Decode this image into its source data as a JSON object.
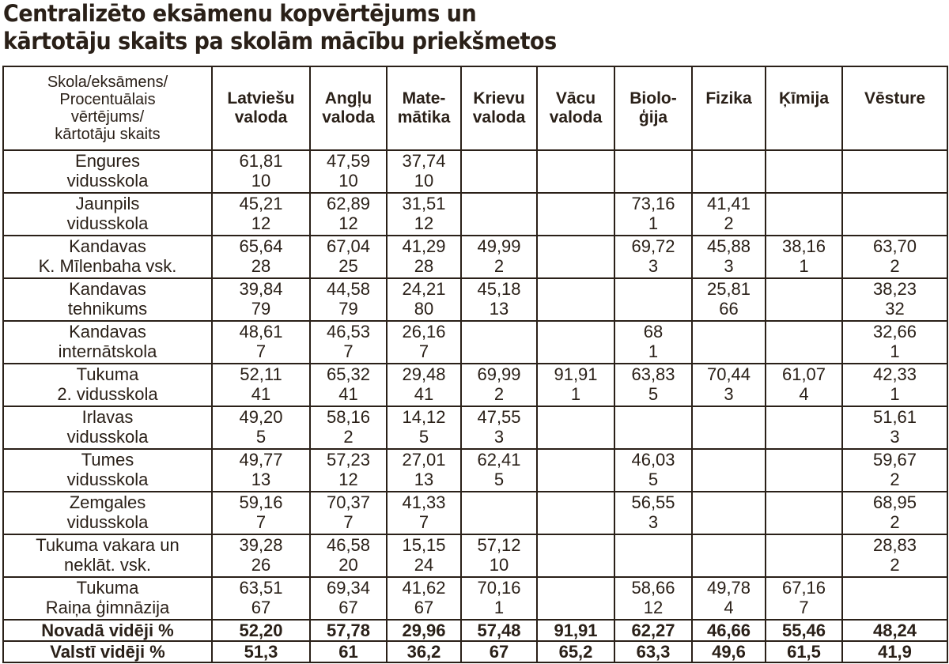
{
  "title": [
    "Centralizēto eksāmenu kopvērtējums un",
    "kārtotāju skaits pa skolām mācību priekšmetos"
  ],
  "corner_header": [
    "Skola/eksāmens/",
    "Procentuālais",
    "vērtējums/",
    "kārtotāju skaits"
  ],
  "subjects": [
    [
      "Latviešu",
      "valoda"
    ],
    [
      "Angļu",
      "valoda"
    ],
    [
      "Mate-",
      "mātika"
    ],
    [
      "Krievu",
      "valoda"
    ],
    [
      "Vācu",
      "valoda"
    ],
    [
      "Biolo-",
      "ģija"
    ],
    [
      "Fizika",
      ""
    ],
    [
      "Ķīmija",
      ""
    ],
    [
      "Vēsture",
      ""
    ]
  ],
  "rows": [
    {
      "school": [
        "Engures",
        "vidusskola"
      ],
      "cells": [
        [
          "61,81",
          "10"
        ],
        [
          "47,59",
          "10"
        ],
        [
          "37,74",
          "10"
        ],
        [
          "",
          ""
        ],
        [
          "",
          ""
        ],
        [
          "",
          ""
        ],
        [
          "",
          ""
        ],
        [
          "",
          ""
        ],
        [
          "",
          ""
        ]
      ]
    },
    {
      "school": [
        "Jaunpils",
        "vidusskola"
      ],
      "cells": [
        [
          "45,21",
          "12"
        ],
        [
          "62,89",
          "12"
        ],
        [
          "31,51",
          "12"
        ],
        [
          "",
          ""
        ],
        [
          "",
          ""
        ],
        [
          "73,16",
          "1"
        ],
        [
          "41,41",
          "2"
        ],
        [
          "",
          ""
        ],
        [
          "",
          ""
        ]
      ]
    },
    {
      "school": [
        "Kandavas",
        "K. Mīlenbaha vsk."
      ],
      "cells": [
        [
          "65,64",
          "28"
        ],
        [
          "67,04",
          "25"
        ],
        [
          "41,29",
          "28"
        ],
        [
          "49,99",
          "2"
        ],
        [
          "",
          ""
        ],
        [
          "69,72",
          "3"
        ],
        [
          "45,88",
          "3"
        ],
        [
          "38,16",
          "1"
        ],
        [
          "63,70",
          "2"
        ]
      ]
    },
    {
      "school": [
        "Kandavas",
        "tehnikums"
      ],
      "cells": [
        [
          "39,84",
          "79"
        ],
        [
          "44,58",
          "79"
        ],
        [
          "24,21",
          "80"
        ],
        [
          "45,18",
          "13"
        ],
        [
          "",
          ""
        ],
        [
          "",
          ""
        ],
        [
          "25,81",
          "66"
        ],
        [
          "",
          ""
        ],
        [
          "38,23",
          "32"
        ]
      ]
    },
    {
      "school": [
        "Kandavas",
        "internātskola"
      ],
      "cells": [
        [
          "48,61",
          "7"
        ],
        [
          "46,53",
          "7"
        ],
        [
          "26,16",
          "7"
        ],
        [
          "",
          ""
        ],
        [
          "",
          ""
        ],
        [
          "68",
          "1"
        ],
        [
          "",
          ""
        ],
        [
          "",
          ""
        ],
        [
          "32,66",
          "1"
        ]
      ]
    },
    {
      "school": [
        "Tukuma",
        "2. vidusskola"
      ],
      "cells": [
        [
          "52,11",
          "41"
        ],
        [
          "65,32",
          "41"
        ],
        [
          "29,48",
          "41"
        ],
        [
          "69,99",
          "2"
        ],
        [
          "91,91",
          "1"
        ],
        [
          "63,83",
          "5"
        ],
        [
          "70,44",
          "3"
        ],
        [
          "61,07",
          "4"
        ],
        [
          "42,33",
          "1"
        ]
      ]
    },
    {
      "school": [
        "Irlavas",
        "vidusskola"
      ],
      "cells": [
        [
          "49,20",
          "5"
        ],
        [
          "58,16",
          "2"
        ],
        [
          "14,12",
          "5"
        ],
        [
          "47,55",
          "3"
        ],
        [
          "",
          ""
        ],
        [
          "",
          ""
        ],
        [
          "",
          ""
        ],
        [
          "",
          ""
        ],
        [
          "51,61",
          "3"
        ]
      ]
    },
    {
      "school": [
        "Tumes",
        "vidusskola"
      ],
      "cells": [
        [
          "49,77",
          "13"
        ],
        [
          "57,23",
          "12"
        ],
        [
          "27,01",
          "13"
        ],
        [
          "62,41",
          "5"
        ],
        [
          "",
          ""
        ],
        [
          "46,03",
          "5"
        ],
        [
          "",
          ""
        ],
        [
          "",
          ""
        ],
        [
          "59,67",
          "2"
        ]
      ]
    },
    {
      "school": [
        "Zemgales",
        "vidusskola"
      ],
      "cells": [
        [
          "59,16",
          "7"
        ],
        [
          "70,37",
          "7"
        ],
        [
          "41,33",
          "7"
        ],
        [
          "",
          ""
        ],
        [
          "",
          ""
        ],
        [
          "56,55",
          "3"
        ],
        [
          "",
          ""
        ],
        [
          "",
          ""
        ],
        [
          "68,95",
          "2"
        ]
      ]
    },
    {
      "school": [
        "Tukuma vakara un",
        "neklāt. vsk."
      ],
      "cells": [
        [
          "39,28",
          "26"
        ],
        [
          "46,58",
          "20"
        ],
        [
          "15,15",
          "24"
        ],
        [
          "57,12",
          "10"
        ],
        [
          "",
          ""
        ],
        [
          "",
          ""
        ],
        [
          "",
          ""
        ],
        [
          "",
          ""
        ],
        [
          "28,83",
          "2"
        ]
      ]
    },
    {
      "school": [
        "Tukuma",
        "Raiņa ģimnāzija"
      ],
      "cells": [
        [
          "63,51",
          "67"
        ],
        [
          "69,34",
          "67"
        ],
        [
          "41,62",
          "67"
        ],
        [
          "70,16",
          "1"
        ],
        [
          "",
          ""
        ],
        [
          "58,66",
          "12"
        ],
        [
          "49,78",
          "4"
        ],
        [
          "67,16",
          "7"
        ],
        [
          "",
          ""
        ]
      ]
    }
  ],
  "summary": [
    {
      "label": "Novadā vidēji %",
      "values": [
        "52,20",
        "57,78",
        "29,96",
        "57,48",
        "91,91",
        "62,27",
        "46,66",
        "55,46",
        "48,24"
      ]
    },
    {
      "label": "Valstī vidēji %",
      "values": [
        "51,3",
        "61",
        "36,2",
        "67",
        "65,2",
        "63,3",
        "49,6",
        "61,5",
        "41,9"
      ]
    }
  ]
}
